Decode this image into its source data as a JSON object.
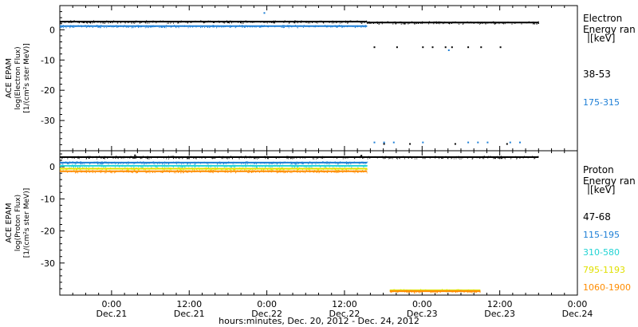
{
  "xlabel": "hours:minutes, Dec. 20, 2012 - Dec. 24, 2012",
  "x_ticks": [
    {
      "time": "0:00",
      "date": "Dec.21"
    },
    {
      "time": "12:00",
      "date": "Dec.21"
    },
    {
      "time": "0:00",
      "date": "Dec.22"
    },
    {
      "time": "12:00",
      "date": "Dec.22"
    },
    {
      "time": "0:00",
      "date": "Dec.23"
    },
    {
      "time": "12:00",
      "date": "Dec.23"
    },
    {
      "time": "0:00",
      "date": "Dec.24"
    }
  ],
  "chart_data": [
    {
      "type": "scatter",
      "panel": "electron",
      "ylabel": [
        "ACE EPAM",
        "log(Electron Flux)",
        "[1/(cm²s ster MeV)]"
      ],
      "legend_title": [
        "Electron",
        "Energy ran",
        "[keV]"
      ],
      "ylim": [
        -40,
        8
      ],
      "xlim_hours_from_dec20_0000": [
        16,
        96
      ],
      "y_ticks": [
        0,
        -10,
        -20,
        -30
      ],
      "grid": false,
      "legend_placement": "right",
      "series": [
        {
          "name": "38-53",
          "color": "#000000",
          "segments": [
            {
              "x_start": 16,
              "x_end": 63.5,
              "y": 2.7
            },
            {
              "x_start": 63.5,
              "x_end": 90,
              "y": 2.4
            }
          ],
          "sparse_points": [
            [
              64.5,
              -5.5
            ],
            [
              68,
              -5.5
            ],
            [
              72,
              -5.5
            ],
            [
              73.5,
              -5.5
            ],
            [
              75.5,
              -5.5
            ],
            [
              76.5,
              -5.5
            ],
            [
              79,
              -5.5
            ],
            [
              81,
              -5.5
            ],
            [
              84,
              -5.5
            ],
            [
              66,
              -37.5
            ],
            [
              70,
              -37.5
            ],
            [
              77,
              -37.5
            ],
            [
              85,
              -37.5
            ]
          ]
        },
        {
          "name": "175-315",
          "color": "#1e7fd6",
          "segments": [
            {
              "x_start": 16,
              "x_end": 63.5,
              "y": 1.2
            }
          ],
          "sparse_points": [
            [
              47.5,
              5.8
            ],
            [
              76,
              -6.5
            ],
            [
              64.5,
              -37
            ],
            [
              66,
              -37
            ],
            [
              67.5,
              -37
            ],
            [
              72,
              -37
            ],
            [
              79,
              -37
            ],
            [
              80.5,
              -37
            ],
            [
              82,
              -37
            ],
            [
              85.5,
              -37
            ],
            [
              87,
              -37
            ]
          ]
        }
      ]
    },
    {
      "type": "scatter",
      "panel": "proton",
      "ylabel": [
        "ACE EPAM",
        "log(Proton Flux)",
        "[1/(cm²s ster MeV)]"
      ],
      "legend_title": [
        "Proton",
        "Energy ran",
        "[keV]"
      ],
      "ylim": [
        -40,
        5
      ],
      "xlim_hours_from_dec20_0000": [
        16,
        96
      ],
      "y_ticks": [
        0,
        -10,
        -20,
        -30
      ],
      "grid": false,
      "legend_placement": "right",
      "series": [
        {
          "name": "47-68",
          "color": "#000000",
          "segments": [
            {
              "x_start": 16,
              "x_end": 90,
              "y": 3.0
            }
          ],
          "sparse_points": [
            [
              27.5,
              3.8
            ],
            [
              62.5,
              3.7
            ]
          ]
        },
        {
          "name": "115-195",
          "color": "#1e7fd6",
          "segments": [
            {
              "x_start": 16,
              "x_end": 63.5,
              "y": 1.3
            }
          ],
          "sparse_points": []
        },
        {
          "name": "310-580",
          "color": "#22d3d3",
          "segments": [
            {
              "x_start": 16,
              "x_end": 63.5,
              "y": 0.3
            }
          ],
          "sparse_points": []
        },
        {
          "name": "795-1193",
          "color": "#e0e000",
          "segments": [
            {
              "x_start": 16,
              "x_end": 63.5,
              "y": -0.6
            },
            {
              "x_start": 67,
              "x_end": 81,
              "y": -38.5
            }
          ],
          "sparse_points": []
        },
        {
          "name": "1060-1900",
          "color": "#ff8c00",
          "segments": [
            {
              "x_start": 16,
              "x_end": 63.5,
              "y": -1.4
            },
            {
              "x_start": 67,
              "x_end": 81,
              "y": -38.8
            }
          ],
          "sparse_points": []
        }
      ]
    }
  ]
}
